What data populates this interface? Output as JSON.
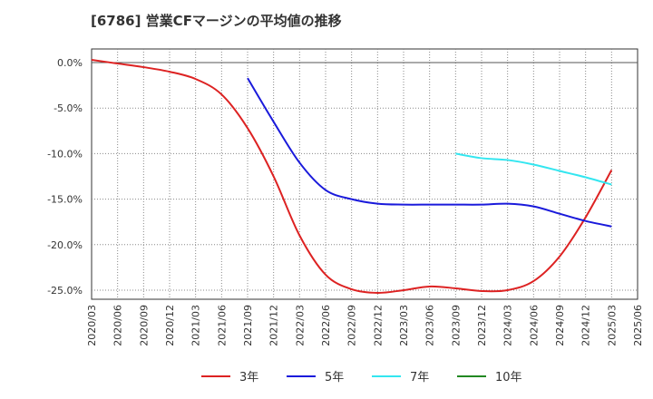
{
  "chart_data": {
    "type": "line",
    "title": "[6786]  営業CFマージンの平均値の推移",
    "xlabel": "",
    "ylabel": "",
    "ylim": [
      -26,
      1.5
    ],
    "y_ticks": [
      0,
      -5,
      -10,
      -15,
      -20,
      -25
    ],
    "y_tick_labels": [
      "0.0%",
      "-5.0%",
      "-10.0%",
      "-15.0%",
      "-20.0%",
      "-25.0%"
    ],
    "x_tick_labels": [
      "2020/03",
      "2020/06",
      "2020/09",
      "2020/12",
      "2021/03",
      "2021/06",
      "2021/09",
      "2021/12",
      "2022/03",
      "2022/06",
      "2022/09",
      "2022/12",
      "2023/03",
      "2023/06",
      "2023/09",
      "2023/12",
      "2024/03",
      "2024/06",
      "2024/09",
      "2024/12",
      "2025/03",
      "2025/06"
    ],
    "grid": true,
    "legend_position": "bottom",
    "colors": {
      "3y": "#dd2222",
      "5y": "#1a1adb",
      "7y": "#33e6f0",
      "10y": "#228822",
      "zero_line": "#555555"
    },
    "series": [
      {
        "key": "3y",
        "name": "3年",
        "x": [
          "2020/03",
          "2020/06",
          "2020/09",
          "2020/12",
          "2021/03",
          "2021/06",
          "2021/09",
          "2021/12",
          "2022/03",
          "2022/06",
          "2022/09",
          "2022/12",
          "2023/03",
          "2023/06",
          "2023/09",
          "2023/12",
          "2024/03",
          "2024/06",
          "2024/09",
          "2024/12",
          "2025/03"
        ],
        "values": [
          0.3,
          -0.1,
          -0.5,
          -1.0,
          -1.8,
          -3.5,
          -7.2,
          -12.5,
          -19.0,
          -23.3,
          -24.9,
          -25.3,
          -25.0,
          -24.6,
          -24.8,
          -25.1,
          -25.0,
          -24.0,
          -21.3,
          -17.0,
          -11.8
        ]
      },
      {
        "key": "5y",
        "name": "5年",
        "x": [
          "2021/09",
          "2021/12",
          "2022/03",
          "2022/06",
          "2022/09",
          "2022/12",
          "2023/03",
          "2023/06",
          "2023/09",
          "2023/12",
          "2024/03",
          "2024/06",
          "2024/09",
          "2024/12",
          "2025/03"
        ],
        "values": [
          -1.7,
          -6.5,
          -11.0,
          -14.0,
          -15.0,
          -15.5,
          -15.6,
          -15.6,
          -15.6,
          -15.6,
          -15.5,
          -15.8,
          -16.6,
          -17.4,
          -18.0
        ]
      },
      {
        "key": "7y",
        "name": "7年",
        "x": [
          "2023/09",
          "2023/12",
          "2024/03",
          "2024/06",
          "2024/09",
          "2024/12",
          "2025/03"
        ],
        "values": [
          -10.0,
          -10.5,
          -10.7,
          -11.2,
          -11.9,
          -12.6,
          -13.4
        ]
      },
      {
        "key": "10y",
        "name": "10年",
        "x": [],
        "values": []
      }
    ]
  }
}
